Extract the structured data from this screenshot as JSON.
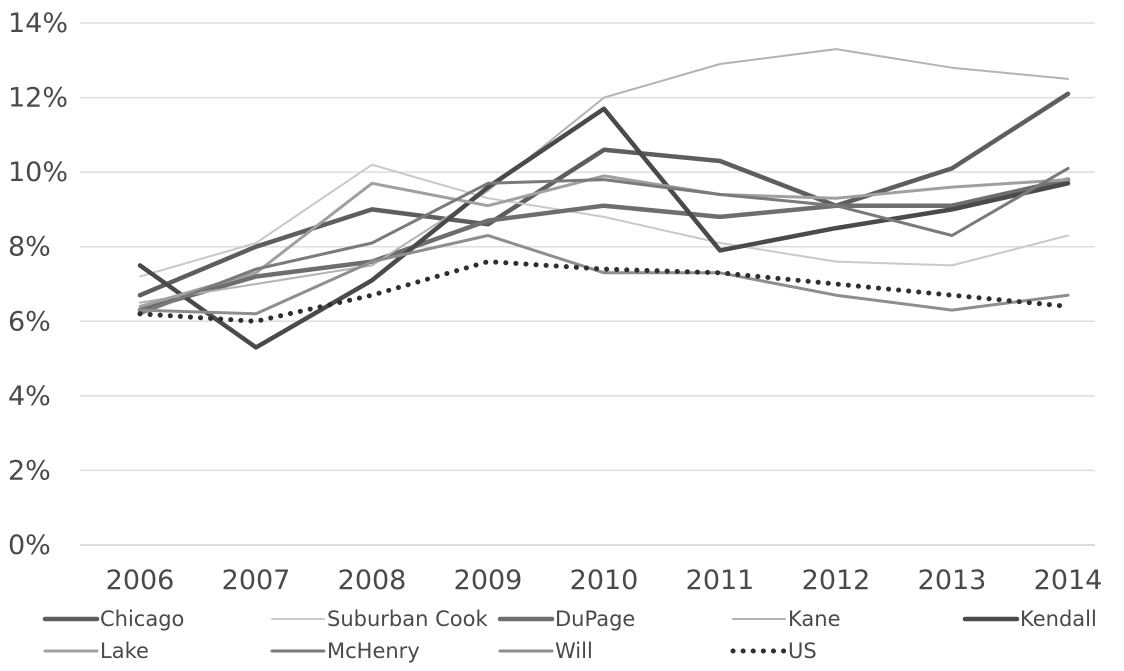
{
  "chart_data": {
    "type": "line",
    "title": "",
    "xlabel": "",
    "ylabel": "",
    "categories": [
      "2006",
      "2007",
      "2008",
      "2009",
      "2010",
      "2011",
      "2012",
      "2013",
      "2014"
    ],
    "y_ticks": [
      "0%",
      "2%",
      "4%",
      "6%",
      "8%",
      "10%",
      "12%",
      "14%"
    ],
    "ylim": [
      0,
      14
    ],
    "y_unit": "%",
    "grid": "horizontal",
    "legend_position": "bottom",
    "series": [
      {
        "name": "Chicago",
        "color": "#5e5e5e",
        "style": "solid-thick",
        "values": [
          6.7,
          8.0,
          9.0,
          8.6,
          10.6,
          10.3,
          9.1,
          10.1,
          12.1
        ]
      },
      {
        "name": "Suburban Cook",
        "color": "#c9c9c9",
        "style": "solid-thin",
        "values": [
          7.2,
          8.1,
          10.2,
          9.3,
          8.8,
          8.1,
          7.6,
          7.5,
          8.3
        ]
      },
      {
        "name": "DuPage",
        "color": "#6e6e6e",
        "style": "solid-thick",
        "values": [
          6.3,
          7.2,
          7.6,
          8.7,
          9.1,
          8.8,
          9.1,
          9.1,
          9.8
        ]
      },
      {
        "name": "Kane",
        "color": "#b3b3b3",
        "style": "solid-thin",
        "values": [
          6.5,
          7.0,
          7.5,
          9.5,
          12.0,
          12.9,
          13.3,
          12.8,
          12.5
        ]
      },
      {
        "name": "Kendall",
        "color": "#4a4a4a",
        "style": "solid-thick",
        "values": [
          7.5,
          5.3,
          7.1,
          9.6,
          11.7,
          7.9,
          8.5,
          9.0,
          9.7
        ]
      },
      {
        "name": "Lake",
        "color": "#a0a0a0",
        "style": "solid",
        "values": [
          6.4,
          7.3,
          9.7,
          9.1,
          9.9,
          9.4,
          9.3,
          9.6,
          9.8
        ]
      },
      {
        "name": "McHenry",
        "color": "#7a7a7a",
        "style": "solid",
        "values": [
          6.2,
          7.4,
          8.1,
          9.7,
          9.8,
          9.4,
          9.1,
          8.3,
          10.1
        ]
      },
      {
        "name": "Will",
        "color": "#8e8e8e",
        "style": "solid",
        "values": [
          6.3,
          6.2,
          7.6,
          8.3,
          7.3,
          7.3,
          6.7,
          6.3,
          6.7
        ]
      },
      {
        "name": "US",
        "color": "#2f2f2f",
        "style": "dotted",
        "values": [
          6.2,
          6.0,
          6.7,
          7.6,
          7.4,
          7.3,
          7.0,
          6.7,
          6.4
        ]
      }
    ]
  }
}
